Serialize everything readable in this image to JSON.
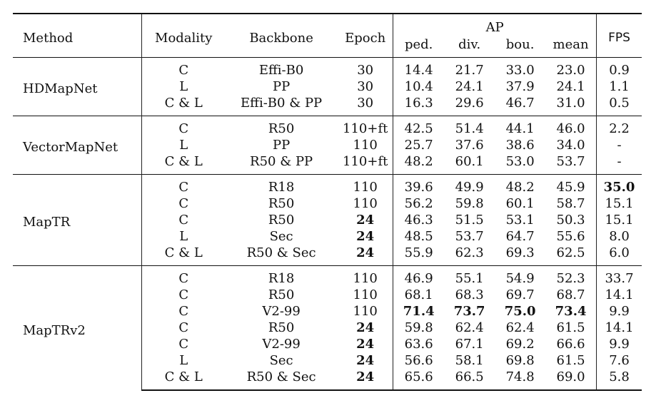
{
  "headers": {
    "method": "Method",
    "modality": "Modality",
    "backbone": "Backbone",
    "epoch": "Epoch",
    "ap": "AP",
    "ap_sub": [
      "ped.",
      "div.",
      "bou.",
      "mean"
    ],
    "fps": "FPS"
  },
  "groups": [
    {
      "method": "HDMapNet",
      "rows": [
        {
          "modality": "C",
          "backbone": "Effi-B0",
          "epoch": "30",
          "ped": "14.4",
          "div": "21.7",
          "bou": "33.0",
          "mean": "23.0",
          "fps": "0.9"
        },
        {
          "modality": "L",
          "backbone": "PP",
          "epoch": "30",
          "ped": "10.4",
          "div": "24.1",
          "bou": "37.9",
          "mean": "24.1",
          "fps": "1.1"
        },
        {
          "modality": "C & L",
          "backbone": "Effi-B0 & PP",
          "epoch": "30",
          "ped": "16.3",
          "div": "29.6",
          "bou": "46.7",
          "mean": "31.0",
          "fps": "0.5"
        }
      ]
    },
    {
      "method": "VectorMapNet",
      "rows": [
        {
          "modality": "C",
          "backbone": "R50",
          "epoch": "110+ft",
          "ped": "42.5",
          "div": "51.4",
          "bou": "44.1",
          "mean": "46.0",
          "fps": "2.2"
        },
        {
          "modality": "L",
          "backbone": "PP",
          "epoch": "110",
          "ped": "25.7",
          "div": "37.6",
          "bou": "38.6",
          "mean": "34.0",
          "fps": "-"
        },
        {
          "modality": "C & L",
          "backbone": "R50 & PP",
          "epoch": "110+ft",
          "ped": "48.2",
          "div": "60.1",
          "bou": "53.0",
          "mean": "53.7",
          "fps": "-"
        }
      ]
    },
    {
      "method": "MapTR",
      "rows": [
        {
          "modality": "C",
          "backbone": "R18",
          "epoch": "110",
          "ped": "39.6",
          "div": "49.9",
          "bou": "48.2",
          "mean": "45.9",
          "fps": "35.0"
        },
        {
          "modality": "C",
          "backbone": "R50",
          "epoch": "110",
          "ped": "56.2",
          "div": "59.8",
          "bou": "60.1",
          "mean": "58.7",
          "fps": "15.1"
        },
        {
          "modality": "C",
          "backbone": "R50",
          "epoch": "24",
          "ped": "46.3",
          "div": "51.5",
          "bou": "53.1",
          "mean": "50.3",
          "fps": "15.1"
        },
        {
          "modality": "L",
          "backbone": "Sec",
          "epoch": "24",
          "ped": "48.5",
          "div": "53.7",
          "bou": "64.7",
          "mean": "55.6",
          "fps": "8.0"
        },
        {
          "modality": "C & L",
          "backbone": "R50 & Sec",
          "epoch": "24",
          "ped": "55.9",
          "div": "62.3",
          "bou": "69.3",
          "mean": "62.5",
          "fps": "6.0"
        }
      ]
    },
    {
      "method": "MapTRv2",
      "rows": [
        {
          "modality": "C",
          "backbone": "R18",
          "epoch": "110",
          "ped": "46.9",
          "div": "55.1",
          "bou": "54.9",
          "mean": "52.3",
          "fps": "33.7"
        },
        {
          "modality": "C",
          "backbone": "R50",
          "epoch": "110",
          "ped": "68.1",
          "div": "68.3",
          "bou": "69.7",
          "mean": "68.7",
          "fps": "14.1"
        },
        {
          "modality": "C",
          "backbone": "V2-99",
          "epoch": "110",
          "ped": "71.4",
          "div": "73.7",
          "bou": "75.0",
          "mean": "73.4",
          "fps": "9.9"
        },
        {
          "modality": "C",
          "backbone": "R50",
          "epoch": "24",
          "ped": "59.8",
          "div": "62.4",
          "bou": "62.4",
          "mean": "61.5",
          "fps": "14.1"
        },
        {
          "modality": "C",
          "backbone": "V2-99",
          "epoch": "24",
          "ped": "63.6",
          "div": "67.1",
          "bou": "69.2",
          "mean": "66.6",
          "fps": "9.9"
        },
        {
          "modality": "L",
          "backbone": "Sec",
          "epoch": "24",
          "ped": "56.6",
          "div": "58.1",
          "bou": "69.8",
          "mean": "61.5",
          "fps": "7.6"
        },
        {
          "modality": "C & L",
          "backbone": "R50 & Sec",
          "epoch": "24",
          "ped": "65.6",
          "div": "66.5",
          "bou": "74.8",
          "mean": "69.0",
          "fps": "5.8"
        }
      ]
    }
  ]
}
